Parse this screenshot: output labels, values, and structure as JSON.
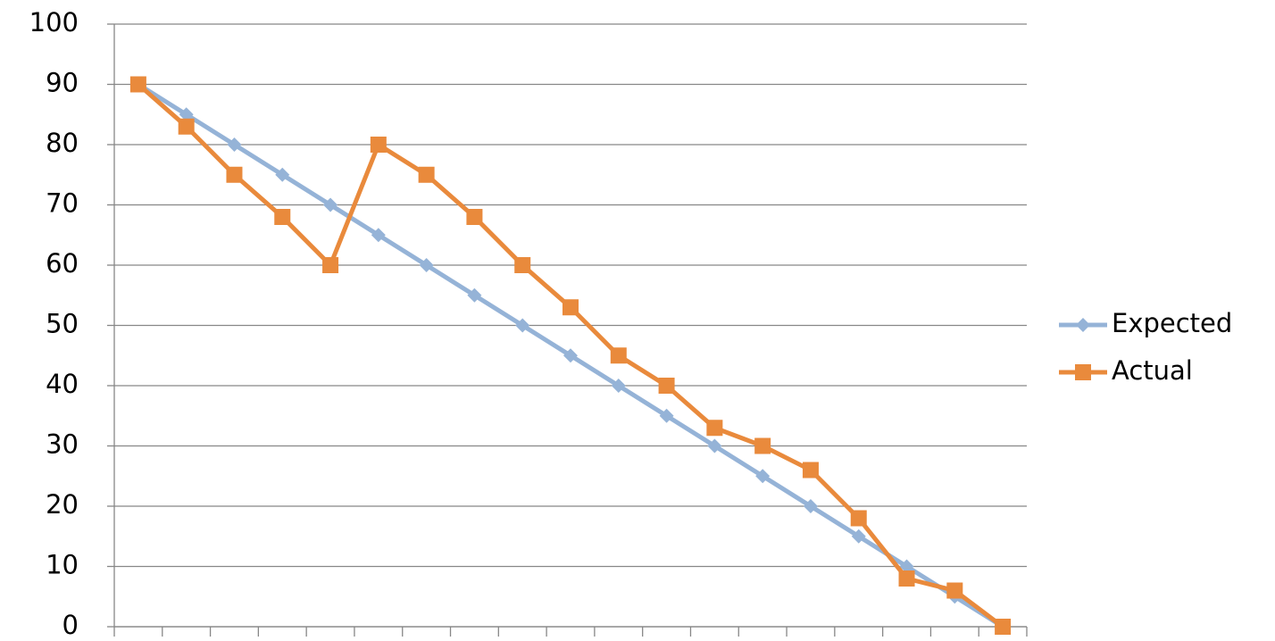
{
  "chart_data": {
    "type": "line",
    "categories": [
      null,
      null,
      null,
      null,
      null,
      null,
      null,
      null,
      null,
      null,
      null,
      null,
      null,
      null,
      null,
      null,
      null,
      null,
      null
    ],
    "series": [
      {
        "name": "Expected",
        "color": "#95b3d7",
        "marker": "diamond",
        "values": [
          90,
          85,
          80,
          75,
          70,
          65,
          60,
          55,
          50,
          45,
          40,
          35,
          30,
          25,
          20,
          15,
          10,
          5,
          0
        ]
      },
      {
        "name": "Actual",
        "color": "#e98a3c",
        "marker": "square",
        "values": [
          90,
          83,
          75,
          68,
          60,
          80,
          75,
          68,
          60,
          53,
          45,
          40,
          33,
          30,
          26,
          18,
          8,
          6,
          0
        ]
      }
    ],
    "ylim": [
      0,
      100
    ],
    "yticks": [
      0,
      10,
      20,
      30,
      40,
      50,
      60,
      70,
      80,
      90,
      100
    ],
    "grid": true,
    "legend": "right"
  }
}
